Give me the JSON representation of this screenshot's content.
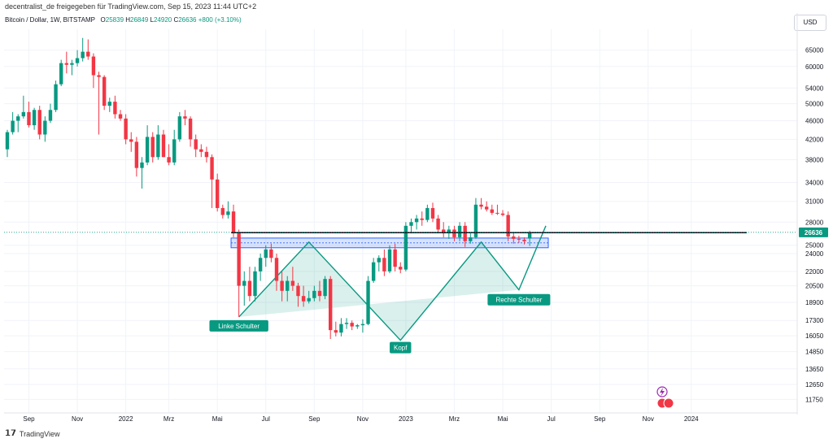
{
  "header": {
    "publisher": "decentralist_de freigegeben für TradingView.com, Sep 15, 2023 11:44 UTC+2"
  },
  "legend": {
    "symbol": "Bitcoin / Dollar, 1W, BITSTAMP",
    "open_label": "O",
    "open": "25839",
    "high_label": "H",
    "high": "26849",
    "low_label": "L",
    "low": "24920",
    "close_label": "C",
    "close": "26636",
    "change": "+800 (+3.10%)"
  },
  "currency": "USD",
  "footer": {
    "brand": "TradingView"
  },
  "colors": {
    "up": "#089981",
    "down": "#f23645",
    "zone": "#2962ff",
    "pattern": "#089981"
  },
  "chart_data": {
    "type": "candlestick",
    "y_scale": "log",
    "ylim": [
      11000,
      72000
    ],
    "y_ticks": [
      "65000",
      "60000",
      "54000",
      "50000",
      "46000",
      "42000",
      "38000",
      "34000",
      "31000",
      "28000",
      "25000",
      "24000",
      "22000",
      "20500",
      "18900",
      "17300",
      "16050",
      "14850",
      "13650",
      "12650",
      "11750"
    ],
    "x_ticks": [
      "Sep",
      "Nov",
      "2022",
      "Mrz",
      "Mai",
      "Jul",
      "Sep",
      "Nov",
      "2023",
      "Mrz",
      "Mai",
      "Jul",
      "Sep",
      "Nov",
      "2024"
    ],
    "x_tick_index": [
      4,
      13,
      22,
      30,
      39,
      48,
      57,
      66,
      74,
      83,
      92,
      101,
      110,
      119,
      127
    ],
    "last_price": "26636",
    "candles": [
      [
        40000,
        44000,
        38500,
        43500
      ],
      [
        43500,
        48000,
        43000,
        46000
      ],
      [
        46000,
        47500,
        43500,
        47000
      ],
      [
        47000,
        52000,
        46500,
        48000
      ],
      [
        48000,
        50500,
        44500,
        45000
      ],
      [
        45000,
        49000,
        44000,
        48500
      ],
      [
        48500,
        49500,
        42000,
        43000
      ],
      [
        43000,
        47000,
        41500,
        46000
      ],
      [
        46000,
        50000,
        45500,
        48500
      ],
      [
        48500,
        56000,
        48000,
        55000
      ],
      [
        55000,
        62000,
        54500,
        61000
      ],
      [
        61000,
        64500,
        58000,
        60500
      ],
      [
        60500,
        62000,
        57500,
        61000
      ],
      [
        61000,
        65000,
        60000,
        62500
      ],
      [
        62500,
        69000,
        61500,
        64500
      ],
      [
        64500,
        68500,
        62000,
        63000
      ],
      [
        63000,
        64000,
        54000,
        57500
      ],
      [
        57500,
        58500,
        43000,
        57000
      ],
      [
        57000,
        57500,
        48500,
        49500
      ],
      [
        49500,
        51500,
        48000,
        50500
      ],
      [
        50500,
        52000,
        46500,
        47500
      ],
      [
        47500,
        48500,
        46000,
        46500
      ],
      [
        46500,
        47500,
        41000,
        42000
      ],
      [
        42000,
        43500,
        39500,
        41500
      ],
      [
        41500,
        42500,
        35000,
        36500
      ],
      [
        36500,
        38500,
        33000,
        37500
      ],
      [
        37500,
        45000,
        37000,
        42500
      ],
      [
        42500,
        43500,
        37500,
        38500
      ],
      [
        38500,
        45000,
        38000,
        43000
      ],
      [
        43000,
        44000,
        38500,
        38500
      ],
      [
        38500,
        41000,
        37000,
        37500
      ],
      [
        37500,
        44000,
        37000,
        42000
      ],
      [
        42000,
        48000,
        41500,
        47000
      ],
      [
        47000,
        48500,
        45000,
        46500
      ],
      [
        46500,
        47000,
        40500,
        42000
      ],
      [
        42000,
        43000,
        38500,
        40000
      ],
      [
        40000,
        41000,
        38500,
        39500
      ],
      [
        39500,
        40500,
        37500,
        38500
      ],
      [
        38500,
        39000,
        30000,
        34500
      ],
      [
        34500,
        35500,
        29500,
        30000
      ],
      [
        30000,
        30500,
        28500,
        29000
      ],
      [
        29000,
        31000,
        28500,
        29500
      ],
      [
        29500,
        30500,
        26000,
        26500
      ],
      [
        26500,
        27000,
        17600,
        20500
      ],
      [
        20500,
        22000,
        18600,
        21000
      ],
      [
        21000,
        22500,
        19000,
        19500
      ],
      [
        19500,
        22500,
        19000,
        22000
      ],
      [
        22000,
        24000,
        21000,
        23500
      ],
      [
        23500,
        25000,
        22500,
        24500
      ],
      [
        24500,
        25200,
        23000,
        23500
      ],
      [
        23500,
        24000,
        20000,
        21000
      ],
      [
        21000,
        22000,
        19000,
        20000
      ],
      [
        20000,
        21500,
        19000,
        21000
      ],
      [
        21000,
        22500,
        20000,
        20500
      ],
      [
        20500,
        20800,
        18500,
        19500
      ],
      [
        19500,
        20500,
        18500,
        19000
      ],
      [
        19000,
        20000,
        18800,
        19300
      ],
      [
        19300,
        20500,
        19000,
        20000
      ],
      [
        20000,
        21000,
        19000,
        19500
      ],
      [
        19500,
        21500,
        19200,
        21200
      ],
      [
        21200,
        21500,
        15800,
        16500
      ],
      [
        16500,
        17200,
        16000,
        16300
      ],
      [
        16300,
        17500,
        16000,
        17000
      ],
      [
        17000,
        17500,
        16600,
        17100
      ],
      [
        17100,
        17300,
        16500,
        16800
      ],
      [
        16800,
        17000,
        16600,
        16900
      ],
      [
        16900,
        17400,
        16300,
        17000
      ],
      [
        17000,
        21500,
        16900,
        21000
      ],
      [
        21000,
        23500,
        20800,
        23000
      ],
      [
        23000,
        23800,
        22000,
        23500
      ],
      [
        23500,
        24500,
        21500,
        22000
      ],
      [
        22000,
        25000,
        21800,
        24500
      ],
      [
        24500,
        25200,
        22000,
        22500
      ],
      [
        22500,
        23000,
        21800,
        22200
      ],
      [
        22200,
        28000,
        22000,
        27500
      ],
      [
        27500,
        28500,
        26500,
        28000
      ],
      [
        28000,
        29000,
        27000,
        28500
      ],
      [
        28500,
        29500,
        27500,
        28300
      ],
      [
        28300,
        30500,
        28000,
        30000
      ],
      [
        30000,
        30800,
        28000,
        28500
      ],
      [
        28500,
        29000,
        26500,
        27000
      ],
      [
        27000,
        28000,
        26000,
        26500
      ],
      [
        26500,
        27500,
        25800,
        27000
      ],
      [
        27000,
        27500,
        25500,
        26000
      ],
      [
        26000,
        28000,
        25500,
        27500
      ],
      [
        27500,
        28000,
        24800,
        25500
      ],
      [
        25500,
        26500,
        25200,
        26000
      ],
      [
        26000,
        31500,
        25800,
        30500
      ],
      [
        30500,
        31500,
        29800,
        30200
      ],
      [
        30200,
        31000,
        29500,
        29800
      ],
      [
        29800,
        30500,
        29000,
        29300
      ],
      [
        29300,
        30500,
        29000,
        29200
      ],
      [
        29200,
        29700,
        28800,
        29000
      ],
      [
        29000,
        29500,
        25500,
        26100
      ],
      [
        26100,
        26500,
        25200,
        25800
      ],
      [
        25800,
        26200,
        25300,
        25700
      ],
      [
        25700,
        26000,
        25100,
        25500
      ],
      [
        25839,
        26849,
        24920,
        26636
      ]
    ],
    "resistance_level": 26600,
    "zone": {
      "low": 24700,
      "high": 25900,
      "start_index": 42,
      "end_index": 100
    },
    "pattern": {
      "points": [
        [
          43,
          17600
        ],
        [
          56,
          25400
        ],
        [
          73,
          15700
        ],
        [
          88,
          25400
        ],
        [
          95,
          20100
        ],
        [
          100,
          27500
        ]
      ],
      "labels": [
        {
          "text": "Linke Schulter",
          "index": 43,
          "price": 16850
        },
        {
          "text": "Kopf",
          "index": 73,
          "price": 15150
        },
        {
          "text": "Rechte Schulter",
          "index": 95,
          "price": 19150
        }
      ]
    }
  }
}
